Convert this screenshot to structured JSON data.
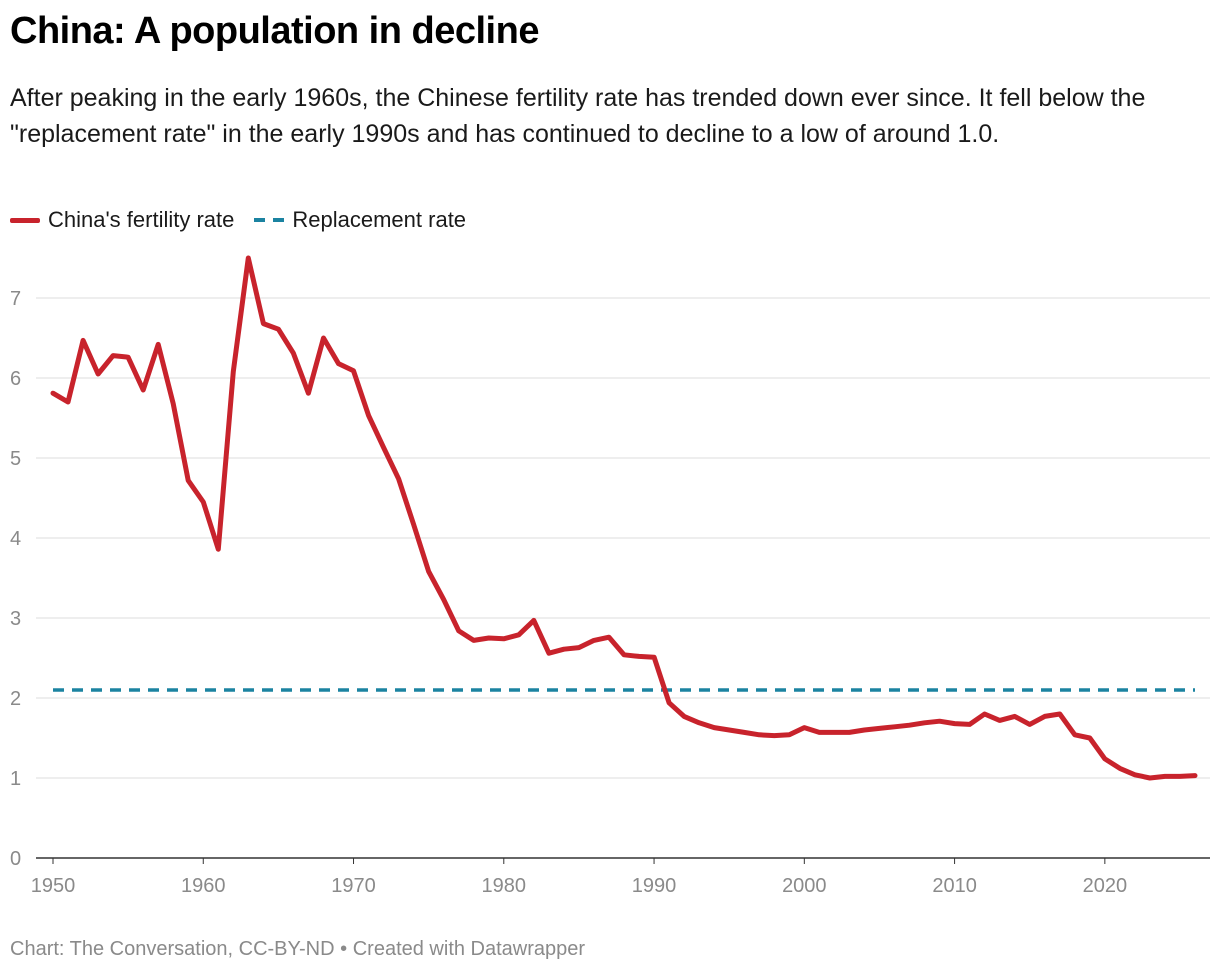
{
  "title": "China: A population in decline",
  "subtitle": "After peaking in the early 1960s, the Chinese fertility rate has trended down ever since. It fell below the \"replacement rate\" in the early 1990s and has continued to decline to a low of around 1.0.",
  "footer": {
    "source": "Chart: The Conversation, CC-BY-ND",
    "separator": "•",
    "credit": "Created with Datawrapper"
  },
  "colors": {
    "fertility_line": "#c8232c",
    "replacement_line": "#1b83a1",
    "grid": "#dddddd",
    "tick_text": "#8a8a8a"
  },
  "chart_data": {
    "type": "line",
    "title": "China: A population in decline",
    "xlabel": "",
    "ylabel": "",
    "xlim": [
      1950,
      2026
    ],
    "ylim": [
      0,
      7.5
    ],
    "x_ticks": [
      1950,
      1960,
      1970,
      1980,
      1990,
      2000,
      2010,
      2020
    ],
    "y_ticks": [
      0,
      1,
      2,
      3,
      4,
      5,
      6,
      7
    ],
    "grid": true,
    "legend_position": "top-left",
    "series": [
      {
        "name": "China's fertility rate",
        "style": "solid",
        "color": "#c8232c",
        "x": [
          1950,
          1951,
          1952,
          1953,
          1954,
          1955,
          1956,
          1957,
          1958,
          1959,
          1960,
          1961,
          1962,
          1963,
          1964,
          1965,
          1966,
          1967,
          1968,
          1969,
          1970,
          1971,
          1972,
          1973,
          1974,
          1975,
          1976,
          1977,
          1978,
          1979,
          1980,
          1981,
          1982,
          1983,
          1984,
          1985,
          1986,
          1987,
          1988,
          1989,
          1990,
          1991,
          1992,
          1993,
          1994,
          1995,
          1996,
          1997,
          1998,
          1999,
          2000,
          2001,
          2002,
          2003,
          2004,
          2005,
          2006,
          2007,
          2008,
          2009,
          2010,
          2011,
          2012,
          2013,
          2014,
          2015,
          2016,
          2017,
          2018,
          2019,
          2020,
          2021,
          2022,
          2023,
          2024,
          2025,
          2026
        ],
        "values": [
          5.81,
          5.7,
          6.47,
          6.05,
          6.28,
          6.26,
          5.85,
          6.42,
          5.68,
          4.72,
          4.45,
          3.86,
          6.08,
          7.5,
          6.68,
          6.61,
          6.31,
          5.81,
          6.5,
          6.18,
          6.09,
          5.53,
          5.13,
          4.74,
          4.17,
          3.58,
          3.23,
          2.84,
          2.72,
          2.75,
          2.74,
          2.79,
          2.97,
          2.56,
          2.61,
          2.63,
          2.72,
          2.76,
          2.54,
          2.52,
          2.51,
          1.94,
          1.77,
          1.69,
          1.63,
          1.6,
          1.57,
          1.54,
          1.53,
          1.54,
          1.63,
          1.57,
          1.57,
          1.57,
          1.6,
          1.62,
          1.64,
          1.66,
          1.69,
          1.71,
          1.68,
          1.67,
          1.8,
          1.72,
          1.77,
          1.67,
          1.77,
          1.8,
          1.54,
          1.5,
          1.24,
          1.12,
          1.04,
          1.0,
          1.02,
          1.02,
          1.03
        ]
      },
      {
        "name": "Replacement rate",
        "style": "dashed",
        "color": "#1b83a1",
        "x": [
          1950,
          2026
        ],
        "values": [
          2.1,
          2.1
        ]
      }
    ]
  }
}
